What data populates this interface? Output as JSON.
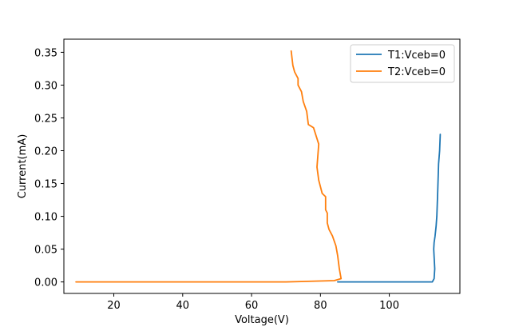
{
  "chart_data": {
    "type": "line",
    "title": "",
    "xlabel": "Voltage(V)",
    "ylabel": "Current(mA)",
    "xlim": [
      5.5,
      120.5
    ],
    "ylim": [
      -0.0175,
      0.37
    ],
    "xticks": [
      20,
      40,
      60,
      80,
      100
    ],
    "yticks": [
      0.0,
      0.05,
      0.1,
      0.15,
      0.2,
      0.25,
      0.3,
      0.35
    ],
    "ytick_labels": [
      "0.00",
      "0.05",
      "0.10",
      "0.15",
      "0.20",
      "0.25",
      "0.30",
      "0.35"
    ],
    "grid": false,
    "legend_position": "upper-right",
    "series": [
      {
        "name": "T1:Vceb=0",
        "color": "#1f77b4",
        "x": [
          85.0,
          95.0,
          105.0,
          112.5,
          113.0,
          113.2,
          112.9,
          113.0,
          113.3,
          113.6,
          113.8,
          114.0,
          114.2,
          114.3,
          114.6,
          114.8
        ],
        "y": [
          0.0,
          0.0,
          0.0,
          0.0,
          0.005,
          0.02,
          0.05,
          0.06,
          0.07,
          0.085,
          0.1,
          0.13,
          0.16,
          0.18,
          0.2,
          0.225
        ]
      },
      {
        "name": "T2:Vceb=0",
        "color": "#ff7f0e",
        "x": [
          9.0,
          30.0,
          50.0,
          70.0,
          84.0,
          86.0,
          85.5,
          85.0,
          84.5,
          83.5,
          82.5,
          82.0,
          82.0,
          81.5,
          81.5,
          80.5,
          79.5,
          79.0,
          79.5,
          78.0,
          76.5,
          76.0,
          75.0,
          74.5,
          73.5,
          73.5,
          72.5,
          72.0,
          71.5
        ],
        "y": [
          0.0,
          0.0,
          0.0,
          0.0,
          0.002,
          0.005,
          0.02,
          0.04,
          0.055,
          0.07,
          0.08,
          0.09,
          0.105,
          0.11,
          0.13,
          0.135,
          0.155,
          0.175,
          0.21,
          0.235,
          0.24,
          0.26,
          0.275,
          0.29,
          0.3,
          0.31,
          0.32,
          0.33,
          0.352
        ]
      }
    ]
  }
}
